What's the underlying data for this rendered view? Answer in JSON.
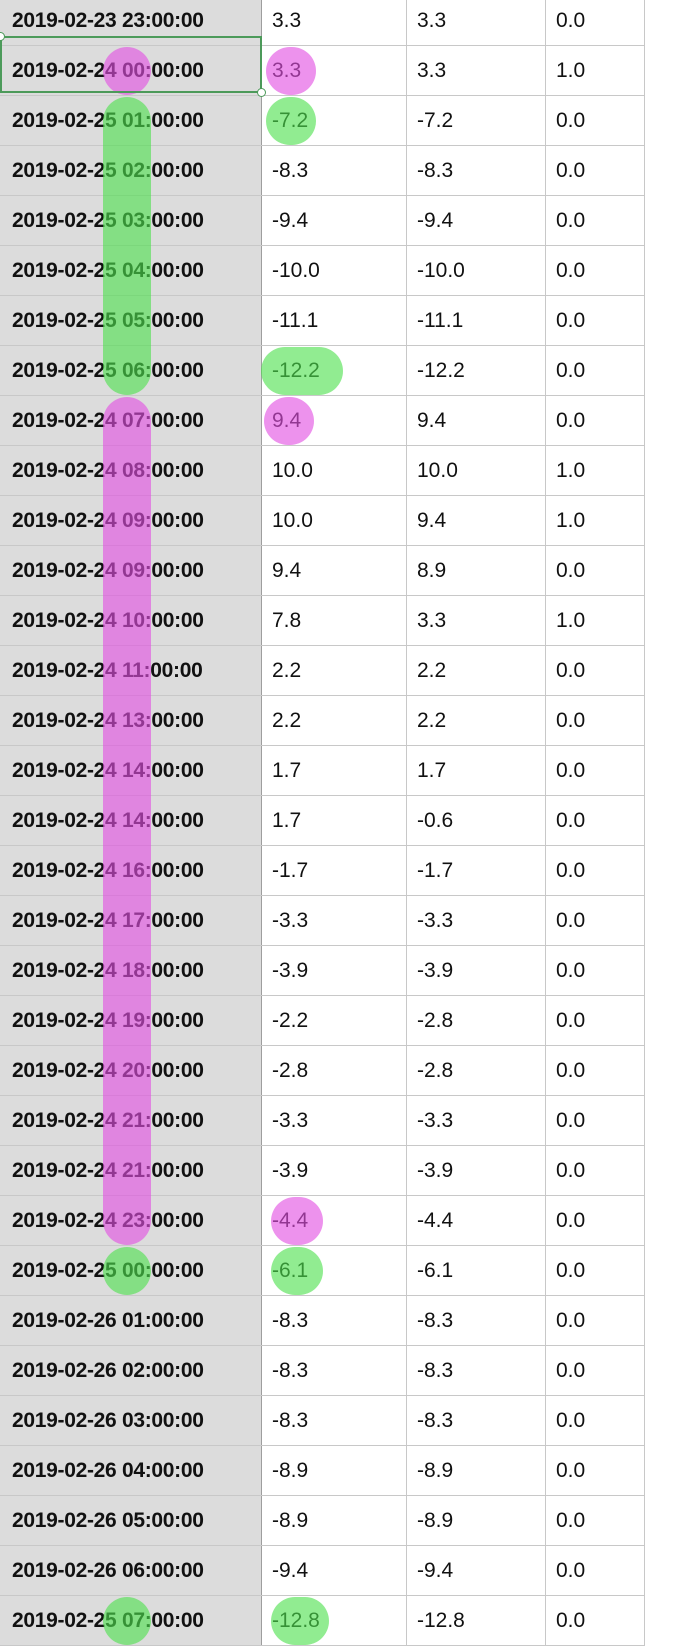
{
  "sheet": {
    "rows": [
      {
        "timestamp": "2019-02-23 23:00:00",
        "col1": "3.3",
        "col2": "3.3",
        "col3": "0.0"
      },
      {
        "timestamp": "2019-02-24 00:00:00",
        "col1": "3.3",
        "col2": "3.3",
        "col3": "1.0"
      },
      {
        "timestamp": "2019-02-25 01:00:00",
        "col1": "-7.2",
        "col2": "-7.2",
        "col3": "0.0"
      },
      {
        "timestamp": "2019-02-25 02:00:00",
        "col1": "-8.3",
        "col2": "-8.3",
        "col3": "0.0"
      },
      {
        "timestamp": "2019-02-25 03:00:00",
        "col1": "-9.4",
        "col2": "-9.4",
        "col3": "0.0"
      },
      {
        "timestamp": "2019-02-25 04:00:00",
        "col1": "-10.0",
        "col2": "-10.0",
        "col3": "0.0"
      },
      {
        "timestamp": "2019-02-25 05:00:00",
        "col1": "-11.1",
        "col2": "-11.1",
        "col3": "0.0"
      },
      {
        "timestamp": "2019-02-25 06:00:00",
        "col1": "-12.2",
        "col2": "-12.2",
        "col3": "0.0"
      },
      {
        "timestamp": "2019-02-24 07:00:00",
        "col1": "9.4",
        "col2": "9.4",
        "col3": "0.0"
      },
      {
        "timestamp": "2019-02-24 08:00:00",
        "col1": "10.0",
        "col2": "10.0",
        "col3": "1.0"
      },
      {
        "timestamp": "2019-02-24 09:00:00",
        "col1": "10.0",
        "col2": "9.4",
        "col3": "1.0"
      },
      {
        "timestamp": "2019-02-24 09:00:00",
        "col1": "9.4",
        "col2": "8.9",
        "col3": "0.0"
      },
      {
        "timestamp": "2019-02-24 10:00:00",
        "col1": "7.8",
        "col2": "3.3",
        "col3": "1.0"
      },
      {
        "timestamp": "2019-02-24 11:00:00",
        "col1": "2.2",
        "col2": "2.2",
        "col3": "0.0"
      },
      {
        "timestamp": "2019-02-24 13:00:00",
        "col1": "2.2",
        "col2": "2.2",
        "col3": "0.0"
      },
      {
        "timestamp": "2019-02-24 14:00:00",
        "col1": "1.7",
        "col2": "1.7",
        "col3": "0.0"
      },
      {
        "timestamp": "2019-02-24 14:00:00",
        "col1": "1.7",
        "col2": "-0.6",
        "col3": "0.0"
      },
      {
        "timestamp": "2019-02-24 16:00:00",
        "col1": "-1.7",
        "col2": "-1.7",
        "col3": "0.0"
      },
      {
        "timestamp": "2019-02-24 17:00:00",
        "col1": "-3.3",
        "col2": "-3.3",
        "col3": "0.0"
      },
      {
        "timestamp": "2019-02-24 18:00:00",
        "col1": "-3.9",
        "col2": "-3.9",
        "col3": "0.0"
      },
      {
        "timestamp": "2019-02-24 19:00:00",
        "col1": "-2.2",
        "col2": "-2.8",
        "col3": "0.0"
      },
      {
        "timestamp": "2019-02-24 20:00:00",
        "col1": "-2.8",
        "col2": "-2.8",
        "col3": "0.0"
      },
      {
        "timestamp": "2019-02-24 21:00:00",
        "col1": "-3.3",
        "col2": "-3.3",
        "col3": "0.0"
      },
      {
        "timestamp": "2019-02-24 21:00:00",
        "col1": "-3.9",
        "col2": "-3.9",
        "col3": "0.0"
      },
      {
        "timestamp": "2019-02-24 23:00:00",
        "col1": "-4.4",
        "col2": "-4.4",
        "col3": "0.0"
      },
      {
        "timestamp": "2019-02-25 00:00:00",
        "col1": "-6.1",
        "col2": "-6.1",
        "col3": "0.0"
      },
      {
        "timestamp": "2019-02-26 01:00:00",
        "col1": "-8.3",
        "col2": "-8.3",
        "col3": "0.0"
      },
      {
        "timestamp": "2019-02-26 02:00:00",
        "col1": "-8.3",
        "col2": "-8.3",
        "col3": "0.0"
      },
      {
        "timestamp": "2019-02-26 03:00:00",
        "col1": "-8.3",
        "col2": "-8.3",
        "col3": "0.0"
      },
      {
        "timestamp": "2019-02-26 04:00:00",
        "col1": "-8.9",
        "col2": "-8.9",
        "col3": "0.0"
      },
      {
        "timestamp": "2019-02-26 05:00:00",
        "col1": "-8.9",
        "col2": "-8.9",
        "col3": "0.0"
      },
      {
        "timestamp": "2019-02-26 06:00:00",
        "col1": "-9.4",
        "col2": "-9.4",
        "col3": "0.0"
      },
      {
        "timestamp": "2019-02-25 07:00:00",
        "col1": "-12.8",
        "col2": "-12.8",
        "col3": "0.0"
      }
    ]
  },
  "colors": {
    "highlight_pink": "#e24fe2",
    "highlight_green": "#4ee04e",
    "selection_border": "#4c9a5a",
    "header_column_bg": "#dcdcdc"
  }
}
